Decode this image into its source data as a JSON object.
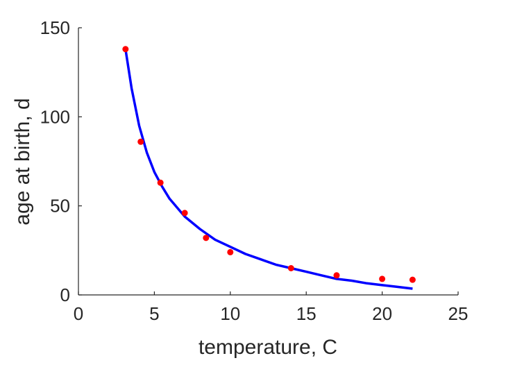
{
  "chart_data": {
    "type": "scatter",
    "title": "",
    "xlabel": "temperature, C",
    "ylabel": "age at birth, d",
    "xlim": [
      0,
      25
    ],
    "ylim": [
      0,
      150
    ],
    "x_ticks": [
      0,
      5,
      10,
      15,
      20,
      25
    ],
    "y_ticks": [
      0,
      50,
      100,
      150
    ],
    "x_tick_labels": [
      "0",
      "5",
      "10",
      "15",
      "20",
      "25"
    ],
    "y_tick_labels": [
      "0",
      "50",
      "100",
      "150"
    ],
    "grid": false,
    "legend": "none",
    "series": [
      {
        "kind": "points",
        "color": "#ff0000",
        "x": [
          3.1,
          4.1,
          5.4,
          7.0,
          8.4,
          10.0,
          14.0,
          17.0,
          20.0,
          22.0
        ],
        "y": [
          138,
          86,
          63,
          46,
          32,
          24,
          15,
          11,
          9,
          8.5
        ]
      },
      {
        "kind": "fit-line",
        "color": "#0000ff",
        "x": [
          3.1,
          3.5,
          4.0,
          4.5,
          5.0,
          5.5,
          6.0,
          7.0,
          8.0,
          9.0,
          10.0,
          11.0,
          12.0,
          13.0,
          14.0,
          15.0,
          16.0,
          17.0,
          18.0,
          19.0,
          20.0,
          21.0,
          22.0
        ],
        "y": [
          138,
          116,
          95,
          80,
          69,
          61,
          54,
          44,
          37,
          31,
          27,
          23,
          20,
          17,
          15,
          13,
          11,
          9,
          8,
          6.5,
          5.5,
          4.5,
          3.5
        ]
      }
    ]
  }
}
